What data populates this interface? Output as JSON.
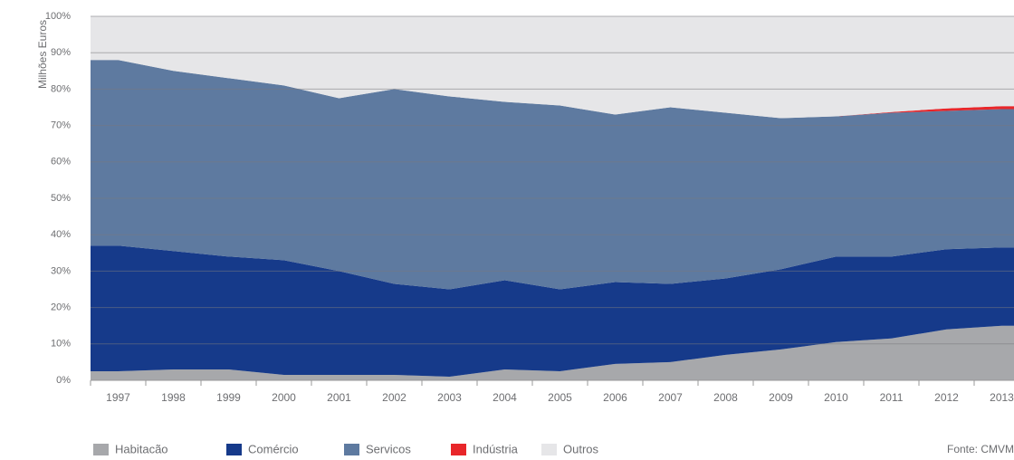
{
  "chart_data": {
    "type": "stacked_area",
    "y_label": "Milhões Euros",
    "source": "Fonte: CMVM",
    "categories": [
      "1997",
      "1998",
      "1999",
      "2000",
      "2001",
      "2002",
      "2003",
      "2004",
      "2005",
      "2006",
      "2007",
      "2008",
      "2009",
      "2010",
      "2011",
      "2012",
      "2013"
    ],
    "series": [
      {
        "name": "Habitacão",
        "color": "#a7a8ab",
        "values": [
          2.5,
          3,
          3,
          1.5,
          1.5,
          1.5,
          1,
          3,
          2.5,
          4.5,
          5,
          7,
          8.5,
          10.5,
          11.5,
          14,
          15
        ]
      },
      {
        "name": "Comércio",
        "color": "#163a8a",
        "values": [
          34.5,
          32.5,
          31,
          31.5,
          28.5,
          25,
          24,
          24.5,
          22.5,
          22.5,
          21.5,
          21,
          22,
          23.5,
          22.5,
          22,
          21.5
        ]
      },
      {
        "name": "Servicos",
        "color": "#5e7aa0",
        "values": [
          51,
          49.5,
          49,
          48,
          47.5,
          53.5,
          53,
          49,
          50.5,
          46,
          48.5,
          45.5,
          41.5,
          38.5,
          39.5,
          38,
          38
        ]
      },
      {
        "name": "Indústria",
        "color": "#e8262a",
        "values": [
          0,
          0,
          0,
          0,
          0,
          0,
          0,
          0,
          0,
          0,
          0,
          0,
          0,
          0,
          0.2,
          0.7,
          0.8
        ]
      },
      {
        "name": "Outros",
        "color": "#e6e6e8",
        "values": [
          12,
          15,
          17,
          19,
          22.5,
          20,
          22,
          23.5,
          24.5,
          27,
          25,
          26.5,
          28,
          27.5,
          26.3,
          25.3,
          24.7
        ]
      }
    ],
    "ylim": [
      0,
      100
    ],
    "yticks": [
      {
        "value": 0,
        "label": "0%"
      },
      {
        "value": 10,
        "label": "10%"
      },
      {
        "value": 20,
        "label": "20%"
      },
      {
        "value": 30,
        "label": "30%"
      },
      {
        "value": 40,
        "label": "40%"
      },
      {
        "value": 50,
        "label": "50%"
      },
      {
        "value": 60,
        "label": "60%"
      },
      {
        "value": 70,
        "label": "70%"
      },
      {
        "value": 80,
        "label": "80%"
      },
      {
        "value": 90,
        "label": "90%"
      },
      {
        "value": 100,
        "label": "100%"
      }
    ],
    "grid": true
  }
}
